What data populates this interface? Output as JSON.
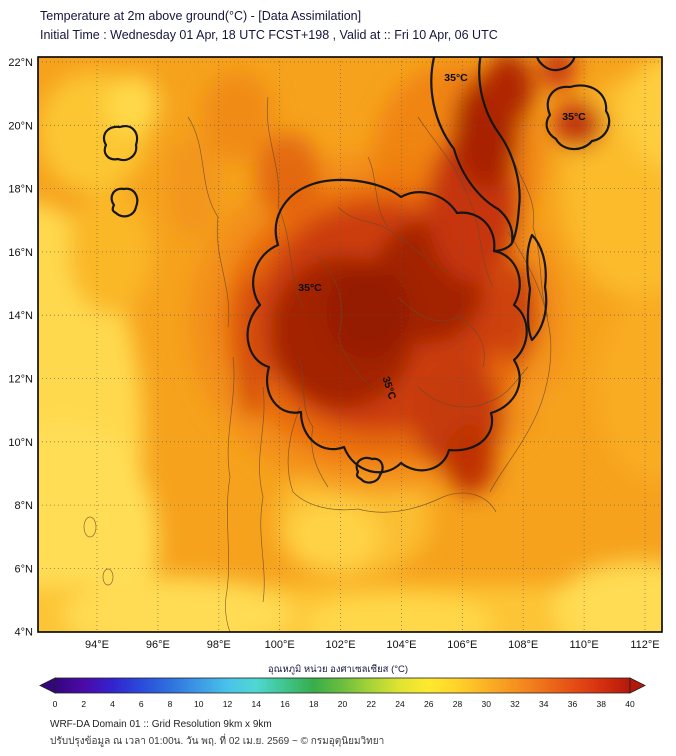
{
  "header": {
    "title": "Temperature at 2m above ground(°C) - [Data Assimilation]",
    "subtitle": "Initial Time : Wednesday 01 Apr, 18 UTC FCST+198 , Valid at :: Fri 10 Apr, 06 UTC"
  },
  "chart_data": {
    "type": "heatmap",
    "title": "Temperature at 2m above ground(°C) - [Data Assimilation]",
    "initial_time": "Wednesday 01 Apr, 18 UTC",
    "forecast_hour": "FCST+198",
    "valid_time": "Fri 10 Apr, 06 UTC",
    "x_axis": {
      "ticks": [
        "94°E",
        "96°E",
        "98°E",
        "100°E",
        "102°E",
        "104°E",
        "106°E",
        "108°E",
        "110°E",
        "112°E"
      ]
    },
    "y_axis": {
      "ticks": [
        "22°N",
        "20°N",
        "18°N",
        "16°N",
        "14°N",
        "12°N",
        "10°N",
        "8°N",
        "6°N",
        "4°N"
      ]
    },
    "contour_label": "35°C",
    "contour_level_c": 35,
    "colorbar": {
      "label": "อุณหภูมิ หน่วย องศาเซลเซียส (°C)",
      "range": [
        0,
        40
      ],
      "ticks": [
        0,
        2,
        4,
        6,
        8,
        10,
        12,
        14,
        16,
        18,
        20,
        22,
        24,
        26,
        28,
        30,
        32,
        34,
        36,
        38,
        40
      ],
      "colors": [
        "#33067E",
        "#4B0AA8",
        "#3323CF",
        "#2A4BDB",
        "#2F71DE",
        "#3C99E6",
        "#49C2EA",
        "#4ED8D2",
        "#3FC48C",
        "#38AD49",
        "#6CBE3E",
        "#A8D437",
        "#E0E431",
        "#FFE92E",
        "#FFD22B",
        "#FBB224",
        "#F6921E",
        "#EF701A",
        "#E54E15",
        "#D5300F",
        "#B5180A"
      ]
    },
    "field_colors": {
      "base_land_orange": "#F6A21D",
      "sea_yellow": "#FFD94E",
      "hot_core_dark_red": "#951D00"
    },
    "grid": {
      "lons": [
        94,
        96,
        98,
        100,
        102,
        104,
        106,
        108,
        110,
        112
      ],
      "lats": [
        22,
        20,
        18,
        16,
        14,
        12,
        10,
        8,
        6,
        4
      ],
      "temperature_c": [
        [
          30,
          31,
          32,
          33,
          34,
          36,
          35,
          33,
          31,
          30
        ],
        [
          31,
          32,
          33,
          34,
          35,
          36,
          36,
          33,
          31,
          31
        ],
        [
          31,
          33,
          34,
          35,
          36,
          36,
          35,
          32,
          31,
          31
        ],
        [
          31,
          33,
          35,
          36,
          37,
          36,
          35,
          33,
          30,
          31
        ],
        [
          30,
          31,
          34,
          37,
          37,
          36,
          35,
          31,
          30,
          30
        ],
        [
          30,
          30,
          32,
          35,
          36,
          36,
          34,
          30,
          30,
          30
        ],
        [
          29,
          30,
          31,
          33,
          34,
          33,
          30,
          29,
          29,
          29
        ],
        [
          29,
          29,
          30,
          31,
          32,
          30,
          29,
          29,
          29,
          29
        ],
        [
          29,
          29,
          30,
          30,
          30,
          29,
          29,
          29,
          29,
          29
        ],
        [
          28,
          29,
          29,
          30,
          29,
          29,
          29,
          29,
          28,
          28
        ]
      ]
    }
  },
  "footer": {
    "line1": "WRF-DA Domain 01 :: Grid Resolution 9km x 9km",
    "line2": "ปรับปรุงข้อมูล ณ เวลา 01:00น. วัน พฤ. ที่ 02 เม.ย. 2569 ~ © กรมอุตุนิยมวิทยา"
  }
}
